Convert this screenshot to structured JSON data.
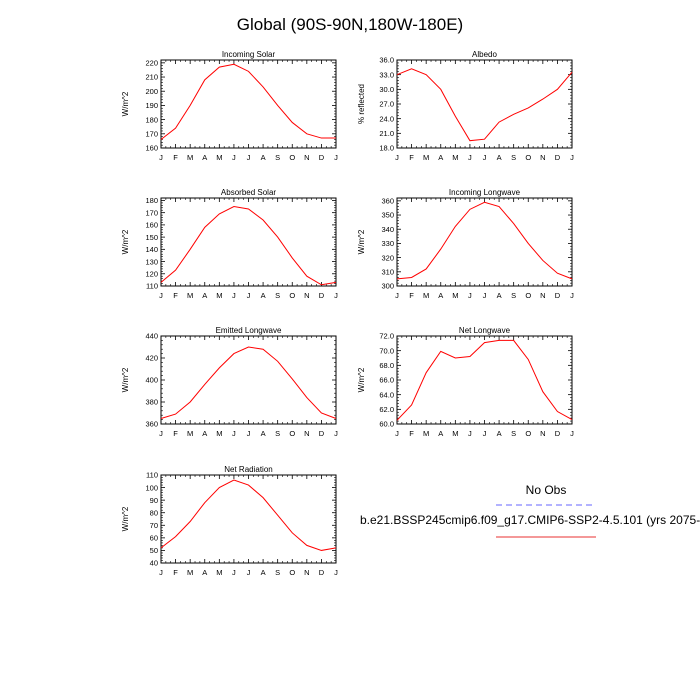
{
  "page_title": "Global (90S-90N,180W-180E)",
  "legend": {
    "obs_label": "No Obs",
    "model_label": "b.e21.BSSP245cmip6.f09_g17.CMIP6-SSP2-4.5.101 (yrs 2075-",
    "obs_color": "#6666ff",
    "model_color": "#e83030"
  },
  "line_color": "#ff0000",
  "chart_data": [
    {
      "type": "line",
      "title": "Incoming Solar",
      "ylabel": "W/m^2",
      "categories": [
        "J",
        "F",
        "M",
        "A",
        "M",
        "J",
        "J",
        "A",
        "S",
        "O",
        "N",
        "D",
        "J"
      ],
      "yticks": [
        160,
        170,
        180,
        190,
        200,
        210,
        220
      ],
      "ytick_labels": [
        "160",
        "170",
        "180",
        "190",
        "200",
        "210",
        "220"
      ],
      "ylim": [
        160,
        222
      ],
      "values": [
        166,
        174,
        190,
        208,
        217,
        219,
        214,
        203,
        190,
        178,
        170,
        167,
        167
      ]
    },
    {
      "type": "line",
      "title": "Albedo",
      "ylabel": "% reflected",
      "categories": [
        "J",
        "F",
        "M",
        "A",
        "M",
        "J",
        "J",
        "A",
        "S",
        "O",
        "N",
        "D",
        "J"
      ],
      "yticks": [
        18,
        21,
        24,
        27,
        30,
        33,
        36
      ],
      "ytick_labels": [
        "18.0",
        "21.0",
        "24.0",
        "27.0",
        "30.0",
        "33.0",
        "36.0"
      ],
      "ylim": [
        18,
        36
      ],
      "values": [
        33.0,
        34.2,
        33.0,
        30.0,
        24.5,
        19.5,
        19.8,
        23.3,
        24.9,
        26.2,
        28.0,
        30.0,
        33.5
      ]
    },
    {
      "type": "line",
      "title": "Absorbed Solar",
      "ylabel": "W/m^2",
      "categories": [
        "J",
        "F",
        "M",
        "A",
        "M",
        "J",
        "J",
        "A",
        "S",
        "O",
        "N",
        "D",
        "J"
      ],
      "yticks": [
        110,
        120,
        130,
        140,
        150,
        160,
        170,
        180
      ],
      "ytick_labels": [
        "110",
        "120",
        "130",
        "140",
        "150",
        "160",
        "170",
        "180"
      ],
      "ylim": [
        110,
        182
      ],
      "values": [
        113,
        123,
        140,
        158,
        169,
        175,
        173,
        164,
        150,
        133,
        118,
        111,
        113
      ]
    },
    {
      "type": "line",
      "title": "Incoming Longwave",
      "ylabel": "W/m^2",
      "categories": [
        "J",
        "F",
        "M",
        "A",
        "M",
        "J",
        "J",
        "A",
        "S",
        "O",
        "N",
        "D",
        "J"
      ],
      "yticks": [
        300,
        310,
        320,
        330,
        340,
        350,
        360
      ],
      "ytick_labels": [
        "300",
        "310",
        "320",
        "330",
        "340",
        "350",
        "360"
      ],
      "ylim": [
        300,
        362
      ],
      "values": [
        305,
        306,
        312,
        326,
        342,
        354,
        359,
        356,
        344,
        330,
        318,
        309,
        305
      ]
    },
    {
      "type": "line",
      "title": "Emitted Longwave",
      "ylabel": "W/m^2",
      "categories": [
        "J",
        "F",
        "M",
        "A",
        "M",
        "J",
        "J",
        "A",
        "S",
        "O",
        "N",
        "D",
        "J"
      ],
      "yticks": [
        360,
        380,
        400,
        420,
        440
      ],
      "ytick_labels": [
        "360",
        "380",
        "400",
        "420",
        "440"
      ],
      "ylim": [
        360,
        440
      ],
      "values": [
        365,
        369,
        380,
        396,
        411,
        424,
        430,
        428,
        417,
        401,
        384,
        370,
        365
      ]
    },
    {
      "type": "line",
      "title": "Net Longwave",
      "ylabel": "W/m^2",
      "categories": [
        "J",
        "F",
        "M",
        "A",
        "M",
        "J",
        "J",
        "A",
        "S",
        "O",
        "N",
        "D",
        "J"
      ],
      "yticks": [
        60,
        62,
        64,
        66,
        68,
        70,
        72
      ],
      "ytick_labels": [
        "60.0",
        "62.0",
        "64.0",
        "66.0",
        "68.0",
        "70.0",
        "72.0"
      ],
      "ylim": [
        60,
        72
      ],
      "values": [
        60.5,
        62.6,
        67.0,
        69.9,
        69.0,
        69.2,
        71.1,
        71.4,
        71.4,
        68.8,
        64.4,
        61.7,
        60.6
      ]
    },
    {
      "type": "line",
      "title": "Net Radiation",
      "ylabel": "W/m^2",
      "categories": [
        "J",
        "F",
        "M",
        "A",
        "M",
        "J",
        "J",
        "A",
        "S",
        "O",
        "N",
        "D",
        "J"
      ],
      "yticks": [
        40,
        50,
        60,
        70,
        80,
        90,
        100,
        110
      ],
      "ytick_labels": [
        "40",
        "50",
        "60",
        "70",
        "80",
        "90",
        "100",
        "110"
      ],
      "ylim": [
        40,
        110
      ],
      "values": [
        52,
        61,
        73,
        88,
        100,
        106,
        102,
        92,
        78,
        64,
        54,
        50,
        52
      ]
    }
  ]
}
